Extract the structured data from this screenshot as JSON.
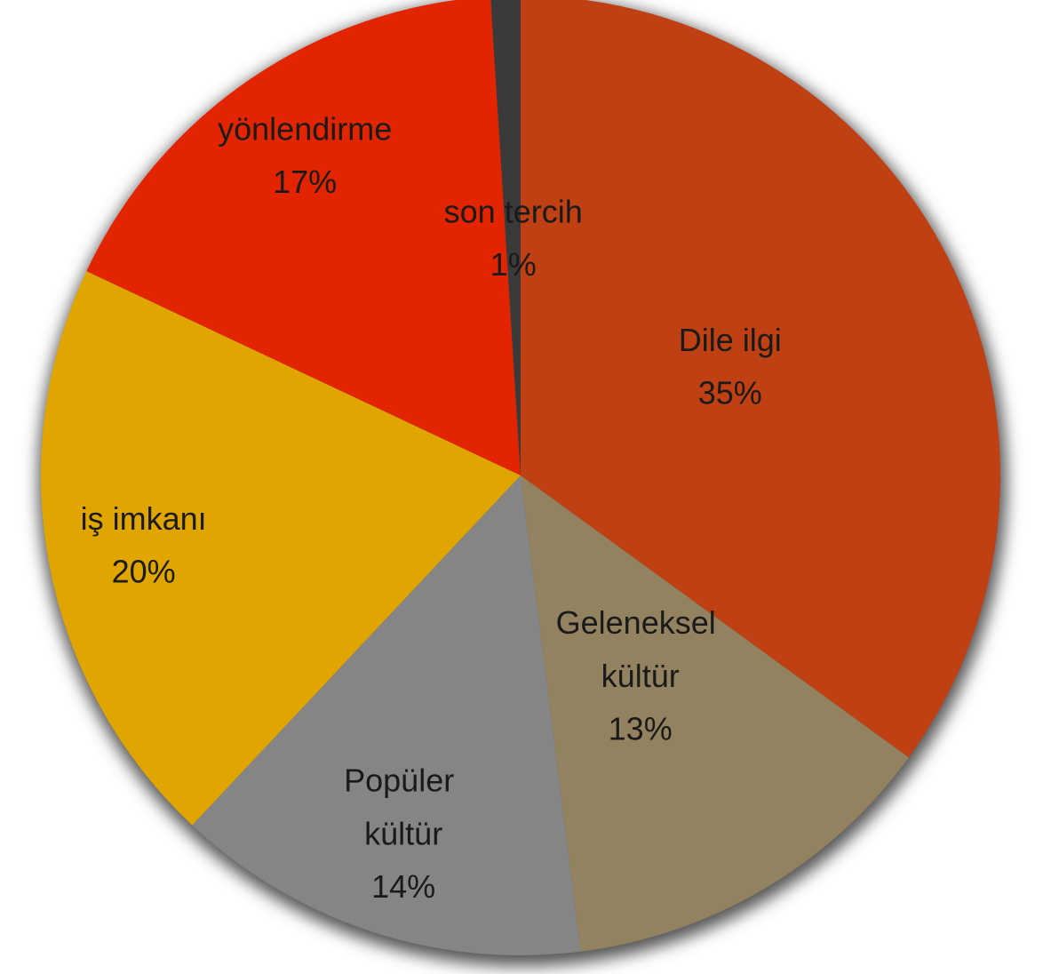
{
  "chart_data": {
    "type": "pie",
    "categories": [
      "Dile ilgi",
      "Geleneksel kültür",
      "Popüler kültür",
      "iş imkanı",
      "yönlendirme",
      "son tercih"
    ],
    "values": [
      35,
      13,
      14,
      20,
      17,
      1
    ],
    "value_labels": [
      "35%",
      "13%",
      "14%",
      "20%",
      "17%",
      "1%"
    ],
    "colors": [
      "#be4013",
      "#938260",
      "#858585",
      "#e1a500",
      "#e22500",
      "#3a3a3a"
    ]
  }
}
